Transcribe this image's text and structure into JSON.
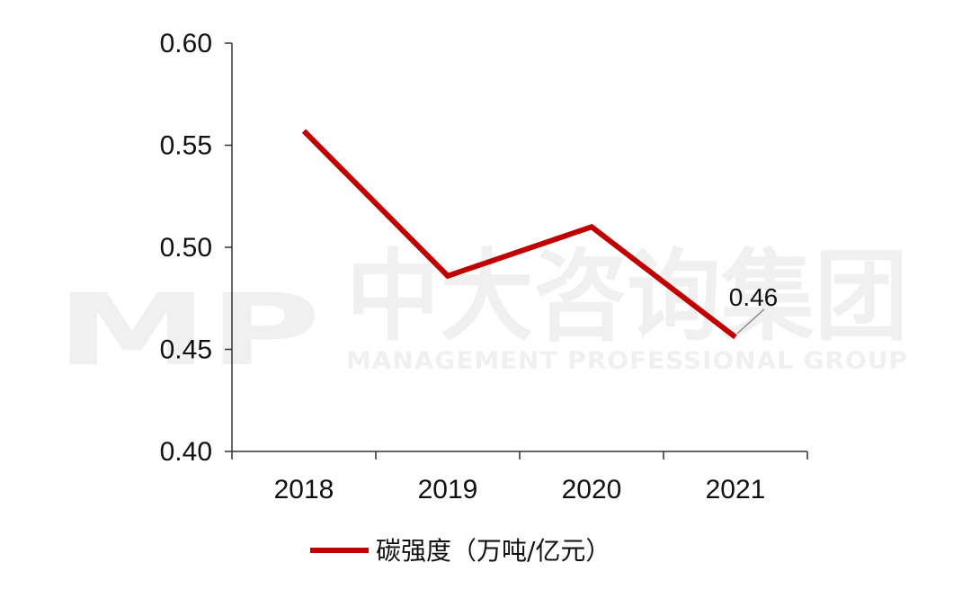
{
  "watermark": {
    "logo": "MP",
    "company_cn": "中大咨询集团",
    "company_en": "MANAGEMENT PROFESSIONAL GROUP"
  },
  "chart_data": {
    "type": "line",
    "categories": [
      "2018",
      "2019",
      "2020",
      "2021"
    ],
    "series": [
      {
        "name": "碳强度（万吨/亿元）",
        "values": [
          0.557,
          0.486,
          0.51,
          0.456
        ],
        "color": "#c00000"
      }
    ],
    "ylim": [
      0.4,
      0.6
    ],
    "yticks": [
      "0.40",
      "0.45",
      "0.50",
      "0.55",
      "0.60"
    ],
    "data_labels": [
      {
        "category": "2021",
        "text": "0.46"
      }
    ],
    "legend_position": "bottom",
    "grid": false,
    "title": "",
    "xlabel": "",
    "ylabel": ""
  }
}
